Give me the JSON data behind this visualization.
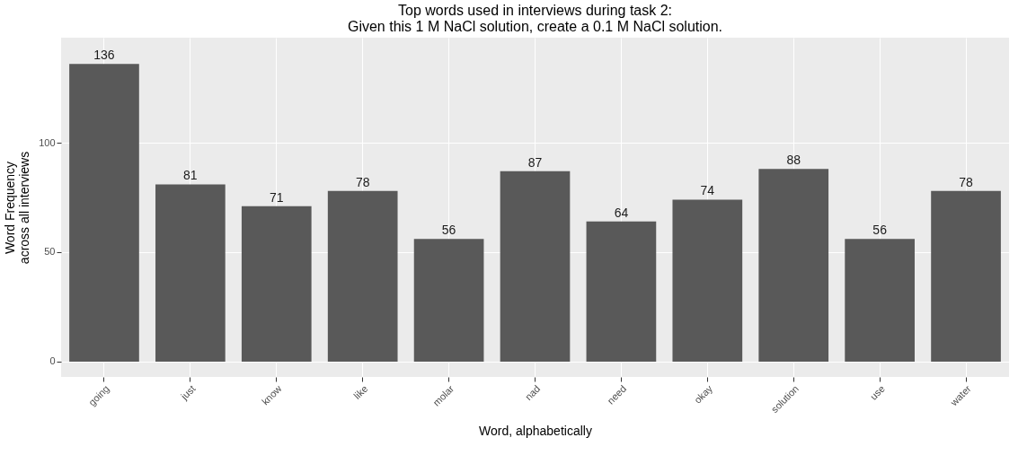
{
  "chart_data": {
    "type": "bar",
    "title": [
      "Top words used in interviews during task 2:",
      "Given this 1 M NaCl solution, create a 0.1 M NaCl solution."
    ],
    "xlabel": "Word, alphabetically",
    "ylabel": [
      "Word Frequency",
      "across all interviews"
    ],
    "categories": [
      "going",
      "just",
      "know",
      "like",
      "molar",
      "nad",
      "need",
      "okay",
      "solution",
      "use",
      "water"
    ],
    "values": [
      136,
      81,
      71,
      78,
      56,
      87,
      64,
      74,
      88,
      56,
      78
    ],
    "color": "#595959",
    "ylim": [
      -7,
      148
    ],
    "yticks": [
      0,
      50,
      100
    ],
    "grid": true,
    "data_labels": true
  }
}
